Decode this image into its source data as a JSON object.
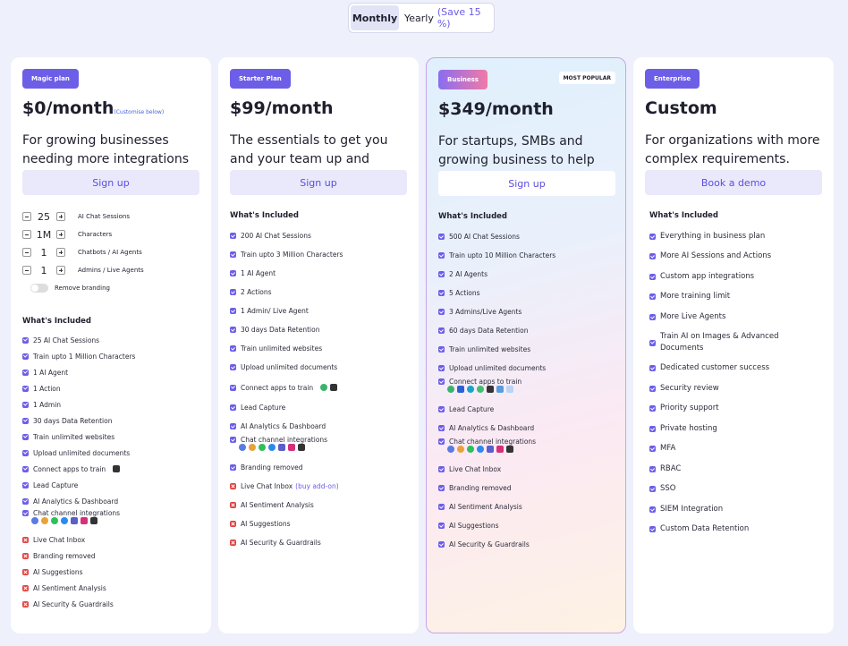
{
  "toggle": {
    "monthly": "Monthly",
    "yearly": "Yearly",
    "save": "(Save 15 %)"
  },
  "plans": [
    {
      "badge": "Magic plan",
      "price": "$0/month",
      "price_note": "(Customise below)",
      "description": "For growing businesses needing more integrations and",
      "button": "Sign up",
      "controls": [
        {
          "value": "25",
          "label": "AI Chat Sessions"
        },
        {
          "value": "1M",
          "label": "Characters"
        },
        {
          "value": "1",
          "label": "Chatbots / AI Agents"
        },
        {
          "value": "1",
          "label": "Admins / Live Agents"
        }
      ],
      "switch_label": "Remove branding",
      "included_title": "What's Included",
      "features": [
        {
          "text": "25 AI Chat Sessions",
          "included": true
        },
        {
          "text": "Train upto 1 Million Characters",
          "included": true
        },
        {
          "text": "1 AI Agent",
          "included": true
        },
        {
          "text": "1 Action",
          "included": true
        },
        {
          "text": "1 Admin",
          "included": true
        },
        {
          "text": "30 days Data Retention",
          "included": true
        },
        {
          "text": "Train unlimited websites",
          "included": true
        },
        {
          "text": "Upload unlimited documents",
          "included": true
        },
        {
          "text": "Connect apps to train",
          "included": true
        },
        {
          "text": "Lead Capture",
          "included": true
        },
        {
          "text": "AI Analytics & Dashboard",
          "included": true
        },
        {
          "text": "Chat channel integrations",
          "included": true
        },
        {
          "text": "Live Chat Inbox",
          "included": false
        },
        {
          "text": "Branding removed",
          "included": false
        },
        {
          "text": "AI Suggestions",
          "included": false
        },
        {
          "text": "AI Sentiment Analysis",
          "included": false
        },
        {
          "text": "AI Security & Guardrails",
          "included": false
        }
      ]
    },
    {
      "badge": "Starter Plan",
      "price": "$99/month",
      "description": "The essentials to get you and your team up and running.",
      "button": "Sign up",
      "included_title": "What's Included",
      "features": [
        {
          "text": "200 AI Chat Sessions",
          "included": true
        },
        {
          "text": "Train upto 3 Million Characters",
          "included": true
        },
        {
          "text": "1 AI Agent",
          "included": true
        },
        {
          "text": "2 Actions",
          "included": true
        },
        {
          "text": "1 Admin/ Live Agent",
          "included": true
        },
        {
          "text": "30 days Data Retention",
          "included": true
        },
        {
          "text": "Train unlimited websites",
          "included": true
        },
        {
          "text": "Upload unlimited documents",
          "included": true
        },
        {
          "text": "Connect apps to train",
          "included": true
        },
        {
          "text": "Lead Capture",
          "included": true
        },
        {
          "text": "AI Analytics & Dashboard",
          "included": true
        },
        {
          "text": "Chat channel integrations",
          "included": true
        },
        {
          "text": "Branding removed",
          "included": true
        },
        {
          "text": "Live Chat Inbox",
          "note": "(buy add-on)",
          "included": false
        },
        {
          "text": "AI Sentiment Analysis",
          "included": false
        },
        {
          "text": "AI Suggestions",
          "included": false
        },
        {
          "text": "AI Security & Guardrails",
          "included": false
        }
      ]
    },
    {
      "badge": "Business",
      "tag": "MOST POPULAR",
      "price": "$349/month",
      "description": "For startups, SMBs and growing business to help you",
      "button": "Sign up",
      "included_title": "What's Included",
      "features": [
        {
          "text": "500 AI Chat Sessions",
          "included": true
        },
        {
          "text": "Train upto 10 Million Characters",
          "included": true
        },
        {
          "text": "2 AI Agents",
          "included": true
        },
        {
          "text": "5 Actions",
          "included": true
        },
        {
          "text": "3 Admins/Live Agents",
          "included": true
        },
        {
          "text": "60 days Data Retention",
          "included": true
        },
        {
          "text": "Train unlimited websites",
          "included": true
        },
        {
          "text": "Upload unlimited documents",
          "included": true
        },
        {
          "text": "Connect apps to train",
          "included": true
        },
        {
          "text": "Lead Capture",
          "included": true
        },
        {
          "text": "AI Analytics & Dashboard",
          "included": true
        },
        {
          "text": "Chat channel integrations",
          "included": true
        },
        {
          "text": "Live Chat Inbox",
          "included": true
        },
        {
          "text": "Branding removed",
          "included": true
        },
        {
          "text": "AI Sentiment Analysis",
          "included": true
        },
        {
          "text": "AI Suggestions",
          "included": true
        },
        {
          "text": "AI Security & Guardrails",
          "included": true
        }
      ]
    },
    {
      "badge": "Enterprise",
      "price": "Custom",
      "description": "For organizations with more complex requirements.",
      "button": "Book a demo",
      "included_title": "What's Included",
      "features": [
        {
          "text": "Everything in business plan",
          "included": true
        },
        {
          "text": "More AI Sessions and Actions",
          "included": true
        },
        {
          "text": "Custom app integrations",
          "included": true
        },
        {
          "text": "More training limit",
          "included": true
        },
        {
          "text": "More Live Agents",
          "included": true
        },
        {
          "text": "Train AI on Images & Advanced Documents",
          "included": true
        },
        {
          "text": "Dedicated customer success",
          "included": true
        },
        {
          "text": "Security review",
          "included": true
        },
        {
          "text": "Priority support",
          "included": true
        },
        {
          "text": "Private hosting",
          "included": true
        },
        {
          "text": "MFA",
          "included": true
        },
        {
          "text": "RBAC",
          "included": true
        },
        {
          "text": "SSO",
          "included": true
        },
        {
          "text": "SIEM Integration",
          "included": true
        },
        {
          "text": "Custom Data Retention",
          "included": true
        }
      ]
    }
  ]
}
